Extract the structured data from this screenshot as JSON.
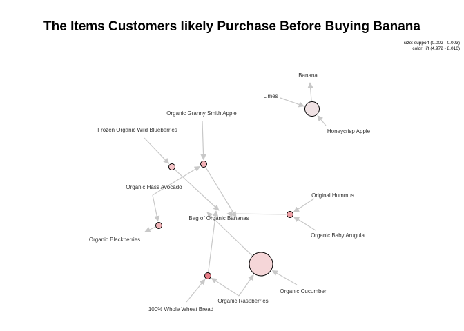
{
  "title": "The Items Customers likely Purchase Before Buying Banana",
  "legend": {
    "size": "size: support (0.002 - 0.003)",
    "color": "color: lift (4.972 - 8.016)"
  },
  "items": {
    "banana": "Banana",
    "limes": "Limes",
    "honeycrisp": "Honeycrisp Apple",
    "granny": "Organic Granny Smith Apple",
    "blueberries": "Frozen Organic Wild Blueberries",
    "avocado": "Organic Hass Avocado",
    "bag": "Bag of Organic Bananas",
    "hummus": "Original Hummus",
    "arugula": "Organic Baby Arugula",
    "blackberries": "Organic Blackberries",
    "cucumber": "Organic Cucumber",
    "raspberries": "Organic Raspberries",
    "bread": "100% Whole Wheat Bread"
  },
  "rules": [
    {
      "fill": "#f0e2e4"
    },
    {
      "fill": "#f5c4c8"
    },
    {
      "fill": "#f2b1b6"
    },
    {
      "fill": "#f2b4b8"
    },
    {
      "fill": "#f1a2a8"
    },
    {
      "fill": "#f5d6d8"
    },
    {
      "fill": "#e87e88"
    }
  ]
}
